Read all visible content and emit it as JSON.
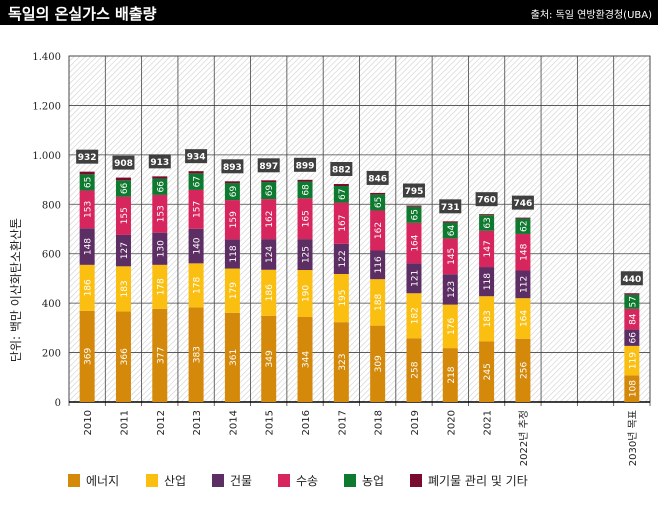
{
  "header": {
    "title": "독일의 온실가스 배출량",
    "source": "출처: 독일 연방환경청(UBA)"
  },
  "chart_data": {
    "type": "bar",
    "stacked": true,
    "title": "독일의 온실가스 배출량",
    "ylabel": "단위: 백만 이산화탄소환산톤",
    "ylim": [
      0,
      1400
    ],
    "yticks": [
      0,
      200,
      400,
      600,
      800,
      1000,
      1200,
      1400
    ],
    "ytick_labels": [
      "0",
      "200",
      "400",
      "600",
      "800",
      "1.000",
      "1.200",
      "1.400"
    ],
    "grid": true,
    "legend": "bottom",
    "categories": [
      "2010",
      "2011",
      "2012",
      "2013",
      "2014",
      "2015",
      "2016",
      "2017",
      "2018",
      "2019",
      "2020",
      "2021",
      "2022년 추정",
      "",
      "",
      "2030년 목표"
    ],
    "series": [
      {
        "name": "에너지",
        "color": "#D4890B",
        "values": [
          369,
          366,
          377,
          383,
          361,
          349,
          344,
          323,
          309,
          258,
          218,
          245,
          256,
          null,
          null,
          108
        ]
      },
      {
        "name": "산업",
        "color": "#FBBF12",
        "values": [
          186,
          183,
          178,
          178,
          179,
          186,
          190,
          195,
          188,
          182,
          176,
          183,
          164,
          null,
          null,
          119
        ]
      },
      {
        "name": "건물",
        "color": "#5C2E63",
        "values": [
          148,
          127,
          130,
          140,
          118,
          124,
          125,
          122,
          116,
          121,
          123,
          118,
          112,
          null,
          null,
          66
        ]
      },
      {
        "name": "수송",
        "color": "#D7255E",
        "values": [
          153,
          155,
          153,
          157,
          159,
          162,
          165,
          167,
          162,
          164,
          145,
          147,
          148,
          null,
          null,
          84
        ]
      },
      {
        "name": "농업",
        "color": "#0E7A2F",
        "values": [
          65,
          66,
          66,
          67,
          69,
          69,
          68,
          67,
          65,
          65,
          64,
          63,
          62,
          null,
          null,
          57
        ]
      },
      {
        "name": "폐기물 관리 및 기타",
        "color": "#7A0A2E",
        "values": [
          11,
          11,
          9,
          9,
          7,
          7,
          7,
          8,
          6,
          5,
          5,
          4,
          4,
          null,
          null,
          6
        ]
      }
    ],
    "totals": [
      932,
      908,
      913,
      934,
      893,
      897,
      899,
      882,
      846,
      795,
      731,
      760,
      746,
      null,
      null,
      440
    ],
    "total_label_color": "#3F3F3F"
  }
}
